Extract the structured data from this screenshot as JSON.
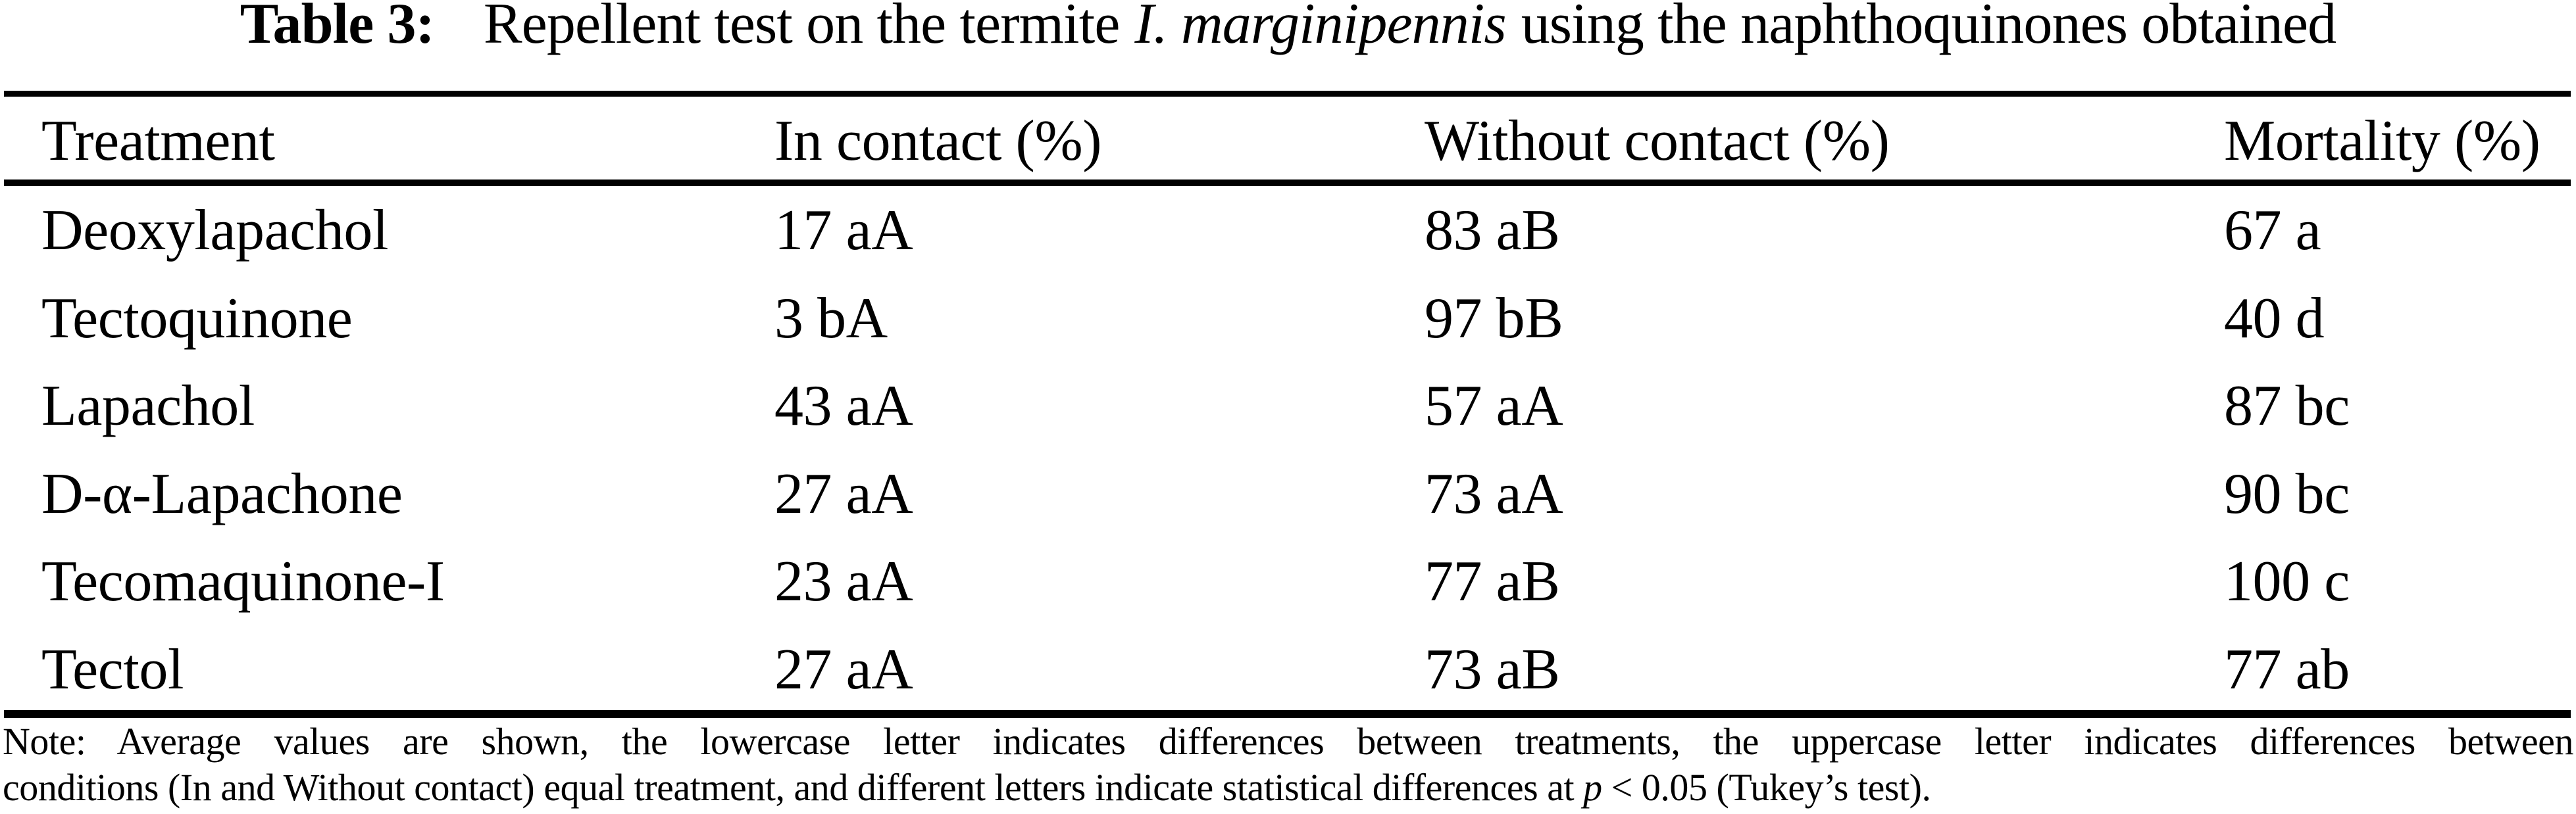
{
  "page": {
    "background_color": "#ffffff",
    "text_color": "#000000"
  },
  "caption": {
    "label": "Table 3:",
    "text_before_species": "Repellent test on the termite",
    "species": "I. marginipennis",
    "text_after_species": "using the naphthoquinones obtained"
  },
  "table": {
    "columns": [
      "Treatment",
      "In contact (%)",
      "Without contact (%)",
      "Mortality (%)"
    ],
    "rows": [
      {
        "treatment": "Deoxylapachol",
        "in_contact": "17 aA",
        "without_contact": "83 aB",
        "mortality": "67 a"
      },
      {
        "treatment": "Tectoquinone",
        "in_contact": "3 bA",
        "without_contact": "97 bB",
        "mortality": "40 d"
      },
      {
        "treatment": "Lapachol",
        "in_contact": "43 aA",
        "without_contact": "57 aA",
        "mortality": "87 bc"
      },
      {
        "treatment": "D-α-Lapachone",
        "in_contact": "27 aA",
        "without_contact": "73 aA",
        "mortality": "90 bc"
      },
      {
        "treatment": "Tecomaquinone-I",
        "in_contact": "23 aA",
        "without_contact": "77 aB",
        "mortality": "100 c"
      },
      {
        "treatment": "Tectol",
        "in_contact": "27 aA",
        "without_contact": "73 aB",
        "mortality": "77 ab"
      }
    ]
  },
  "note": {
    "line1": "Note: Average values are shown, the lowercase letter indicates differences between treatments, the uppercase letter indicates differences between",
    "line2_before_p": "conditions (In and Without contact) equal treatment, and different letters indicate statistical differences at",
    "p_symbol": "p",
    "line2_after_p": "< 0.05 (Tukey’s test)."
  }
}
